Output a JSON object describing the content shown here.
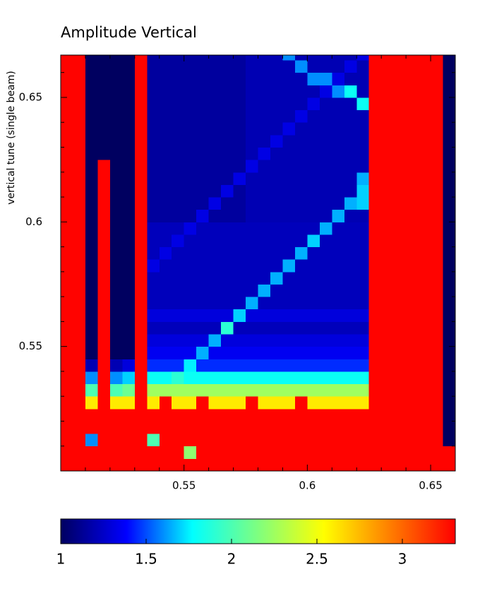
{
  "chart_data": {
    "type": "heatmap",
    "title": "Amplitude Vertical",
    "ylabel": "vertical tune (single beam)",
    "xlim": [
      0.5,
      0.66
    ],
    "ylim": [
      0.5,
      0.667
    ],
    "xticks": [
      0.55,
      0.6,
      0.65
    ],
    "yticks": [
      0.55,
      0.6,
      0.65
    ],
    "xticks_minor": [
      0.51,
      0.52,
      0.53,
      0.54,
      0.56,
      0.57,
      0.58,
      0.59,
      0.61,
      0.62,
      0.63,
      0.64
    ],
    "yticks_minor": [
      0.51,
      0.52,
      0.53,
      0.54,
      0.56,
      0.57,
      0.58,
      0.59,
      0.61,
      0.62,
      0.63,
      0.64,
      0.66
    ],
    "colormap": [
      "#000060",
      "#0000ff",
      "#00ffff",
      "#7fff7f",
      "#ffff00",
      "#ff7f00",
      "#ff0000"
    ],
    "clim": [
      1,
      3.31
    ],
    "cticks": [
      1,
      1.5,
      2,
      2.5,
      3
    ],
    "x": [
      0.5025,
      0.5075,
      0.5125,
      0.5175,
      0.5225,
      0.5275,
      0.5325,
      0.5375,
      0.5425,
      0.5475,
      0.5525,
      0.5575,
      0.5625,
      0.5675,
      0.5725,
      0.5775,
      0.5825,
      0.5875,
      0.5925,
      0.5975,
      0.6025,
      0.6075,
      0.6125,
      0.6175,
      0.6225,
      0.6275,
      0.6325,
      0.6375,
      0.6425,
      0.6475,
      0.6525,
      0.6575
    ],
    "y": [
      0.5025,
      0.5075,
      0.5125,
      0.5175,
      0.5225,
      0.5275,
      0.5325,
      0.5375,
      0.5425,
      0.5475,
      0.5525,
      0.5575,
      0.5625,
      0.5675,
      0.5725,
      0.5775,
      0.5825,
      0.5875,
      0.5925,
      0.5975,
      0.6025,
      0.6075,
      0.6125,
      0.6175,
      0.6225,
      0.6275,
      0.6325,
      0.6375,
      0.6425,
      0.6475,
      0.6525,
      0.6575,
      0.6625,
      0.6675
    ],
    "z": [
      [
        3.3,
        3.3,
        3.3,
        3.3,
        3.3,
        3.3,
        3.3,
        3.3,
        3.3,
        3.3,
        3.3,
        3.3,
        3.3,
        3.3,
        3.3,
        3.3,
        3.3,
        3.3,
        3.3,
        3.3,
        3.3,
        3.3,
        3.3,
        3.3,
        3.3,
        3.3,
        3.3,
        3.3,
        3.3,
        3.3,
        3.3,
        3.3
      ],
      [
        3.3,
        3.3,
        3.3,
        3.3,
        3.3,
        3.3,
        3.3,
        3.3,
        3.3,
        3.3,
        2.2,
        3.3,
        3.3,
        3.3,
        3.3,
        3.3,
        3.3,
        3.3,
        3.3,
        3.3,
        3.3,
        3.3,
        3.3,
        3.3,
        3.3,
        3.3,
        3.3,
        3.3,
        3.3,
        3.3,
        3.3,
        3.3
      ],
      [
        3.3,
        3.3,
        1.6,
        3.3,
        3.3,
        3.3,
        3.3,
        2.0,
        3.3,
        3.3,
        3.3,
        3.3,
        3.3,
        3.3,
        3.3,
        3.3,
        3.3,
        3.3,
        3.3,
        3.3,
        3.3,
        3.3,
        3.3,
        3.3,
        3.3,
        3.3,
        3.3,
        3.3,
        3.3,
        3.3,
        3.3,
        1
      ],
      [
        3.3,
        3.3,
        3.3,
        3.3,
        3.3,
        3.3,
        3.3,
        3.3,
        3.3,
        3.3,
        3.3,
        3.3,
        3.3,
        3.3,
        3.3,
        3.3,
        3.3,
        3.3,
        3.3,
        3.3,
        3.3,
        3.3,
        3.3,
        3.3,
        3.3,
        3.3,
        3.3,
        3.3,
        3.3,
        3.3,
        3.3,
        1
      ],
      [
        3.3,
        3.3,
        3.3,
        3.3,
        3.3,
        3.3,
        3.3,
        3.3,
        3.3,
        3.3,
        3.3,
        3.3,
        3.3,
        3.3,
        3.3,
        3.3,
        3.3,
        3.3,
        3.3,
        3.3,
        3.3,
        3.3,
        3.3,
        3.3,
        3.3,
        3.3,
        3.3,
        3.3,
        3.3,
        3.3,
        3.3,
        1
      ],
      [
        3.3,
        3.3,
        2.6,
        3.3,
        2.6,
        2.6,
        3.3,
        2.6,
        3.3,
        2.6,
        2.6,
        3.3,
        2.6,
        2.6,
        2.6,
        3.3,
        2.6,
        2.6,
        2.6,
        3.3,
        2.6,
        2.6,
        2.6,
        2.6,
        2.6,
        3.3,
        3.3,
        3.3,
        3.3,
        3.3,
        3.3,
        1
      ],
      [
        3.3,
        3.3,
        2,
        3.3,
        2,
        2.1,
        3.3,
        2.25,
        2.25,
        2.25,
        2.25,
        2.25,
        2.25,
        2.25,
        2.25,
        2.25,
        2.25,
        2.25,
        2.25,
        2.25,
        2.25,
        2.25,
        2.25,
        2.25,
        2.25,
        3.3,
        3.3,
        3.3,
        3.3,
        3.3,
        3.3,
        1
      ],
      [
        3.3,
        3.3,
        1.6,
        3.3,
        1.6,
        1.7,
        3.3,
        1.8,
        1.8,
        1.9,
        1.8,
        1.8,
        1.8,
        1.8,
        1.8,
        1.8,
        1.8,
        1.8,
        1.8,
        1.8,
        1.8,
        1.8,
        1.8,
        1.8,
        1.8,
        3.3,
        3.3,
        3.3,
        3.3,
        3.3,
        3.3,
        1
      ],
      [
        3.3,
        3.3,
        1.2,
        3.3,
        1.2,
        1.3,
        3.3,
        1.45,
        1.45,
        1.45,
        1.75,
        1.45,
        1.45,
        1.45,
        1.45,
        1.45,
        1.45,
        1.45,
        1.45,
        1.45,
        1.45,
        1.45,
        1.45,
        1.45,
        1.45,
        3.3,
        3.3,
        3.3,
        3.3,
        3.3,
        3.3,
        1
      ],
      [
        3.3,
        3.3,
        1,
        3.3,
        1,
        1,
        3.3,
        1.35,
        1.35,
        1.35,
        1.35,
        1.65,
        1.35,
        1.35,
        1.35,
        1.35,
        1.35,
        1.35,
        1.35,
        1.35,
        1.35,
        1.35,
        1.35,
        1.35,
        1.35,
        3.3,
        3.3,
        3.3,
        3.3,
        3.3,
        3.3,
        1
      ],
      [
        3.3,
        3.3,
        1,
        3.3,
        1,
        1,
        3.3,
        1.3,
        1.3,
        1.3,
        1.3,
        1.3,
        1.65,
        1.3,
        1.3,
        1.3,
        1.3,
        1.3,
        1.3,
        1.3,
        1.3,
        1.3,
        1.3,
        1.3,
        1.3,
        3.3,
        3.3,
        3.3,
        3.3,
        3.3,
        3.3,
        1
      ],
      [
        3.3,
        3.3,
        1,
        3.3,
        1,
        1,
        3.3,
        1.22,
        1.22,
        1.22,
        1.22,
        1.22,
        1.22,
        1.9,
        1.22,
        1.22,
        1.22,
        1.22,
        1.22,
        1.22,
        1.22,
        1.22,
        1.22,
        1.22,
        1.22,
        3.3,
        3.3,
        3.3,
        3.3,
        3.3,
        3.3,
        1
      ],
      [
        3.3,
        3.3,
        1,
        3.3,
        1,
        1,
        3.3,
        1.3,
        1.3,
        1.3,
        1.3,
        1.3,
        1.3,
        1.3,
        1.7,
        1.3,
        1.3,
        1.3,
        1.3,
        1.3,
        1.3,
        1.3,
        1.3,
        1.3,
        1.3,
        3.3,
        3.3,
        3.3,
        3.3,
        3.3,
        3.3,
        1
      ],
      [
        3.3,
        3.3,
        1,
        3.3,
        1,
        1,
        3.3,
        1.22,
        1.22,
        1.22,
        1.22,
        1.22,
        1.22,
        1.22,
        1.22,
        1.65,
        1.22,
        1.22,
        1.22,
        1.22,
        1.22,
        1.22,
        1.22,
        1.22,
        1.22,
        3.3,
        3.3,
        3.3,
        3.3,
        3.3,
        3.3,
        1
      ],
      [
        3.3,
        3.3,
        1,
        3.3,
        1,
        1,
        3.3,
        1.22,
        1.22,
        1.22,
        1.22,
        1.22,
        1.22,
        1.22,
        1.22,
        1.22,
        1.65,
        1.22,
        1.22,
        1.22,
        1.22,
        1.22,
        1.22,
        1.22,
        1.22,
        3.3,
        3.3,
        3.3,
        3.3,
        3.3,
        3.3,
        1
      ],
      [
        3.3,
        3.3,
        1,
        3.3,
        1,
        1,
        3.3,
        1.22,
        1.22,
        1.22,
        1.22,
        1.22,
        1.22,
        1.22,
        1.22,
        1.22,
        1.22,
        1.65,
        1.22,
        1.22,
        1.22,
        1.22,
        1.22,
        1.22,
        1.22,
        3.3,
        3.3,
        3.3,
        3.3,
        3.3,
        3.3,
        1
      ],
      [
        3.3,
        3.3,
        1,
        3.3,
        1,
        1,
        3.3,
        1.32,
        1.22,
        1.22,
        1.22,
        1.22,
        1.22,
        1.22,
        1.22,
        1.22,
        1.22,
        1.22,
        1.65,
        1.22,
        1.22,
        1.22,
        1.22,
        1.22,
        1.22,
        3.3,
        3.3,
        3.3,
        3.3,
        3.3,
        3.3,
        1
      ],
      [
        3.3,
        3.3,
        1,
        3.3,
        1,
        1,
        3.3,
        1.22,
        1.32,
        1.22,
        1.22,
        1.22,
        1.22,
        1.22,
        1.22,
        1.22,
        1.22,
        1.22,
        1.22,
        1.65,
        1.22,
        1.22,
        1.22,
        1.22,
        1.22,
        3.3,
        3.3,
        3.3,
        3.3,
        3.3,
        3.3,
        1
      ],
      [
        3.3,
        3.3,
        1,
        3.3,
        1,
        1,
        3.3,
        1.22,
        1.22,
        1.32,
        1.22,
        1.22,
        1.22,
        1.22,
        1.22,
        1.22,
        1.22,
        1.22,
        1.22,
        1.22,
        1.7,
        1.22,
        1.22,
        1.22,
        1.22,
        3.3,
        3.3,
        3.3,
        3.3,
        3.3,
        3.3,
        1
      ],
      [
        3.3,
        3.3,
        1,
        3.3,
        1,
        1,
        3.3,
        1.22,
        1.22,
        1.22,
        1.32,
        1.22,
        1.22,
        1.22,
        1.22,
        1.22,
        1.22,
        1.22,
        1.22,
        1.22,
        1.22,
        1.65,
        1.22,
        1.22,
        1.22,
        3.3,
        3.3,
        3.3,
        3.3,
        3.3,
        3.3,
        1
      ],
      [
        3.3,
        3.3,
        1,
        3.3,
        1,
        1,
        3.3,
        1.15,
        1.15,
        1.15,
        1.15,
        1.32,
        1.15,
        1.15,
        1.15,
        1.2,
        1.2,
        1.2,
        1.2,
        1.2,
        1.2,
        1.2,
        1.65,
        1.2,
        1.2,
        3.3,
        3.3,
        3.3,
        3.3,
        3.3,
        3.3,
        1
      ],
      [
        3.3,
        3.3,
        1,
        3.3,
        1,
        1,
        3.3,
        1.15,
        1.15,
        1.15,
        1.15,
        1.15,
        1.32,
        1.15,
        1.15,
        1.2,
        1.2,
        1.2,
        1.2,
        1.2,
        1.2,
        1.2,
        1.2,
        1.65,
        1.7,
        3.3,
        3.3,
        3.3,
        3.3,
        3.3,
        3.3,
        1
      ],
      [
        3.3,
        3.3,
        1,
        3.3,
        1,
        1,
        3.3,
        1.15,
        1.15,
        1.15,
        1.15,
        1.15,
        1.15,
        1.32,
        1.15,
        1.2,
        1.2,
        1.2,
        1.2,
        1.2,
        1.2,
        1.2,
        1.2,
        1.2,
        1.7,
        3.3,
        3.3,
        3.3,
        3.3,
        3.3,
        3.3,
        1
      ],
      [
        3.3,
        3.3,
        1,
        3.3,
        1,
        1,
        3.3,
        1.15,
        1.15,
        1.15,
        1.15,
        1.15,
        1.15,
        1.15,
        1.32,
        1.2,
        1.2,
        1.2,
        1.2,
        1.2,
        1.2,
        1.2,
        1.2,
        1.2,
        1.65,
        3.3,
        3.3,
        3.3,
        3.3,
        3.3,
        3.3,
        1
      ],
      [
        3.3,
        3.3,
        1,
        3.3,
        1,
        1,
        3.3,
        1.15,
        1.15,
        1.15,
        1.15,
        1.15,
        1.15,
        1.15,
        1.15,
        1.32,
        1.2,
        1.2,
        1.2,
        1.2,
        1.2,
        1.2,
        1.2,
        1.2,
        1.2,
        3.3,
        3.3,
        3.3,
        3.3,
        3.3,
        3.3,
        1
      ],
      [
        3.3,
        3.3,
        1,
        1,
        1,
        1,
        3.3,
        1.15,
        1.15,
        1.15,
        1.15,
        1.15,
        1.15,
        1.15,
        1.15,
        1.2,
        1.32,
        1.2,
        1.2,
        1.2,
        1.2,
        1.2,
        1.2,
        1.2,
        1.2,
        3.3,
        3.3,
        3.3,
        3.3,
        3.3,
        3.3,
        1
      ],
      [
        3.3,
        3.3,
        1,
        1,
        1,
        1,
        3.3,
        1.15,
        1.15,
        1.15,
        1.15,
        1.15,
        1.15,
        1.15,
        1.15,
        1.2,
        1.2,
        1.32,
        1.2,
        1.2,
        1.2,
        1.2,
        1.2,
        1.2,
        1.2,
        3.3,
        3.3,
        3.3,
        3.3,
        3.3,
        3.3,
        1
      ],
      [
        3.3,
        3.3,
        1,
        1,
        1,
        1,
        3.3,
        1.15,
        1.15,
        1.15,
        1.15,
        1.15,
        1.15,
        1.15,
        1.15,
        1.2,
        1.2,
        1.2,
        1.32,
        1.2,
        1.2,
        1.2,
        1.2,
        1.2,
        1.2,
        3.3,
        3.3,
        3.3,
        3.3,
        3.3,
        3.3,
        1
      ],
      [
        3.3,
        3.3,
        1,
        1,
        1,
        1,
        3.3,
        1.15,
        1.15,
        1.15,
        1.15,
        1.15,
        1.15,
        1.15,
        1.15,
        1.2,
        1.2,
        1.2,
        1.2,
        1.32,
        1.2,
        1.2,
        1.2,
        1.2,
        1.2,
        3.3,
        3.3,
        3.3,
        3.3,
        3.3,
        3.3,
        1
      ],
      [
        3.3,
        3.3,
        1,
        1,
        1,
        1,
        3.3,
        1.15,
        1.15,
        1.15,
        1.15,
        1.15,
        1.15,
        1.15,
        1.15,
        1.2,
        1.2,
        1.2,
        1.2,
        1.2,
        1.32,
        1.2,
        1.2,
        1.2,
        1.8,
        3.3,
        3.3,
        3.3,
        3.3,
        3.3,
        3.3,
        1
      ],
      [
        3.3,
        3.3,
        1,
        1,
        1,
        1,
        3.3,
        1.15,
        1.15,
        1.15,
        1.15,
        1.15,
        1.15,
        1.15,
        1.15,
        1.2,
        1.2,
        1.2,
        1.2,
        1.2,
        1.2,
        1.32,
        1.6,
        1.8,
        1.2,
        3.3,
        3.3,
        3.3,
        3.3,
        3.3,
        3.3,
        1
      ],
      [
        3.3,
        3.3,
        1,
        1,
        1,
        1,
        3.3,
        1.15,
        1.15,
        1.15,
        1.15,
        1.15,
        1.15,
        1.15,
        1.15,
        1.2,
        1.2,
        1.2,
        1.2,
        1.2,
        1.6,
        1.6,
        1.32,
        1.2,
        1.2,
        3.3,
        3.3,
        3.3,
        3.3,
        3.3,
        3.3,
        1
      ],
      [
        3.3,
        3.3,
        1,
        1,
        1,
        1,
        3.3,
        1.15,
        1.15,
        1.15,
        1.15,
        1.15,
        1.15,
        1.15,
        1.15,
        1.2,
        1.2,
        1.2,
        1.2,
        1.6,
        1.2,
        1.2,
        1.2,
        1.32,
        1.2,
        3.3,
        3.3,
        3.3,
        3.3,
        3.3,
        3.3,
        1
      ],
      [
        3.3,
        3.3,
        1,
        1,
        1,
        1,
        3.3,
        1.15,
        1.15,
        1.15,
        1.15,
        1.15,
        1.15,
        1.15,
        1.15,
        1.2,
        1.2,
        1.2,
        1.6,
        1.2,
        1.2,
        1.2,
        1.2,
        1.2,
        1.32,
        3.3,
        3.3,
        3.3,
        3.3,
        3.3,
        3.3,
        1
      ]
    ]
  }
}
